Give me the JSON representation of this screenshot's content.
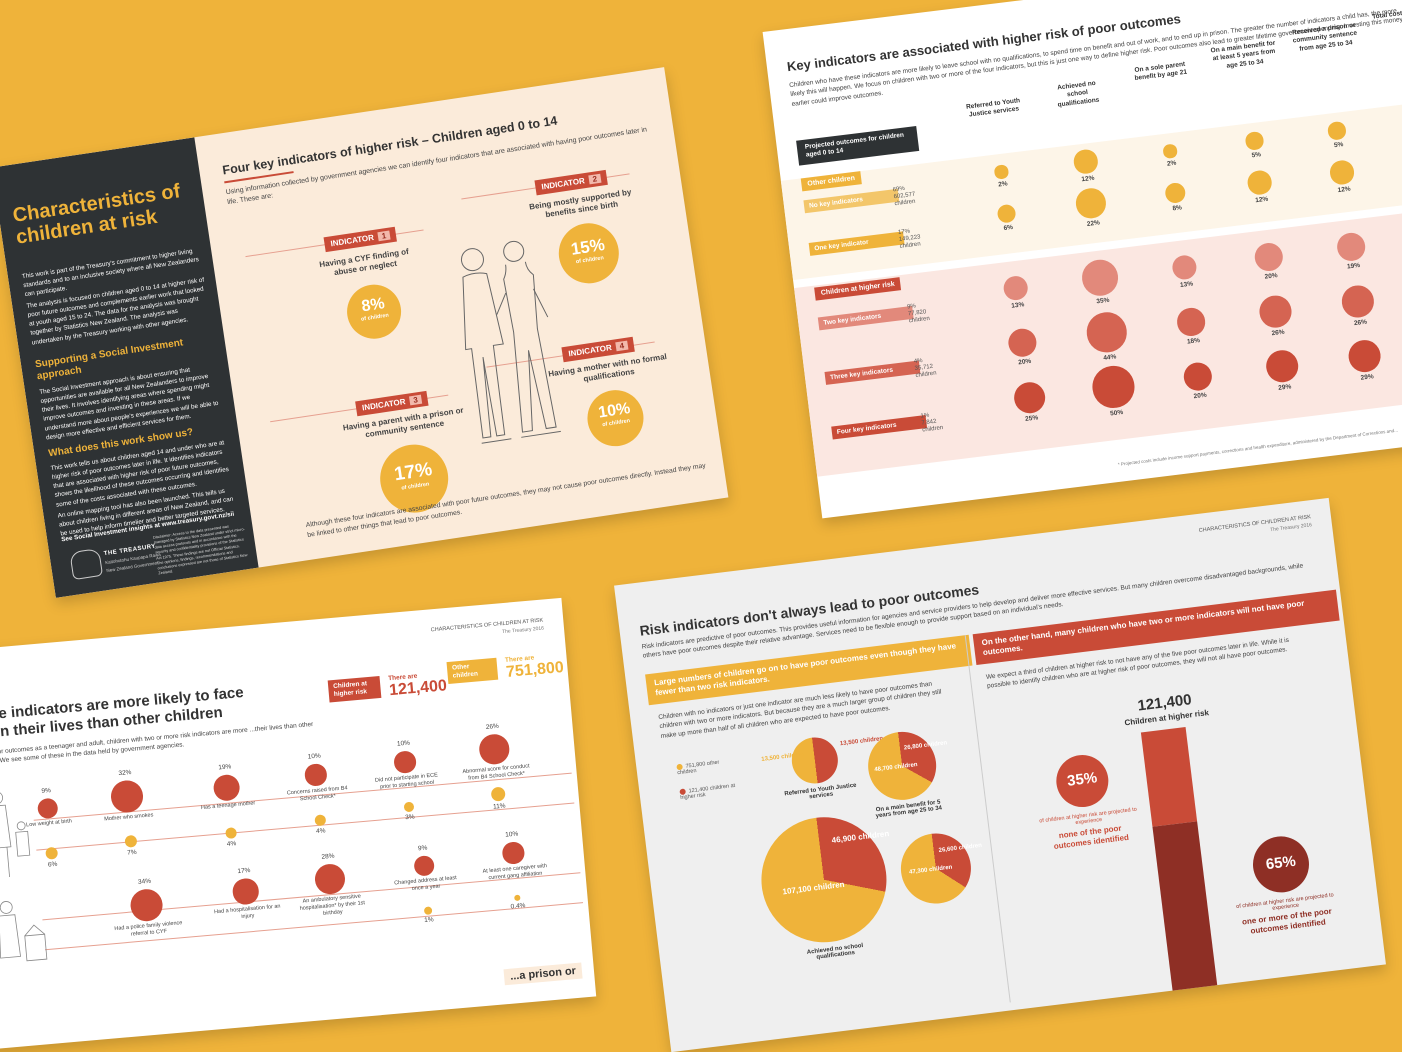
{
  "panel1": {
    "title": "Characteristics of children at risk",
    "intro1": "This work is part of the Treasury's commitment to higher living standards and to an inclusive society where all New Zealanders can participate.",
    "intro2": "The analysis is focused on children aged 0 to 14 at higher risk of poor future outcomes and complements earlier work that looked at youth aged 15 to 24. The data for the analysis was brought together by Statistics New Zealand. The analysis was undertaken by the Treasury working with other agencies.",
    "h_support": "Supporting a Social Investment approach",
    "support_text": "The Social Investment approach is about ensuring that opportunities are available for all New Zealanders to improve their lives. It involves identifying areas where spending might improve outcomes and investing in these areas. If we understand more about people's experiences we will be able to design more effective and efficient services for them.",
    "h_show": "What does this work show us?",
    "show_text1": "This work tells us about children aged 14 and under who are at higher risk of poor outcomes later in life. It identifies indicators that are associated with higher risk of poor future outcomes, shows the likelihood of these outcomes occurring and identifies some of the costs associated with these outcomes.",
    "show_text2": "An online mapping tool has also been launched. This tells us about children living in different areas of New Zealand, and can be used to help inform timelier and better targeted services.",
    "show_text3": "See Social Investment insights at www.treasury.govt.nz/sii",
    "disclaimer": "Disclaimer: Access to the data presented was managed by Statistics New Zealand under strict micro-data access protocols and in accordance with the security and confidentiality provisions of the Statistics Act 1975. These findings are not Official Statistics. The opinions, findings, recommendations and conclusions expressed are not those of Statistics New Zealand.",
    "logo_text": "THE TREASURY",
    "logo_sub": "Kaitohutohu Kaupapa Rawa",
    "nz_gov": "New Zealand Government",
    "heading": "Four key indicators of higher risk – Children aged 0 to 14",
    "subheading": "Using information collected by government agencies we can identify four indicators that are associated with having poor outcomes later in life. These are:",
    "indicators": [
      {
        "tag": "INDICATOR",
        "num": "1",
        "label": "Having a CYF finding of abuse or neglect",
        "pct": "8%",
        "unit": "of children"
      },
      {
        "tag": "INDICATOR",
        "num": "2",
        "label": "Being mostly supported by benefits since birth",
        "pct": "15%",
        "unit": "of children"
      },
      {
        "tag": "INDICATOR",
        "num": "3",
        "label": "Having a parent with a prison or community sentence",
        "pct": "17%",
        "unit": "of children"
      },
      {
        "tag": "INDICATOR",
        "num": "4",
        "label": "Having a mother with no formal qualifications",
        "pct": "10%",
        "unit": "of children"
      }
    ],
    "footnote": "Although these four indicators are associated with poor future outcomes, they may not cause poor outcomes directly. Instead they may be linked to other things that lead to poor outcomes."
  },
  "panel2": {
    "title": "Key indicators are associated with higher risk of poor outcomes",
    "intro": "Children who have these indicators are more likely to leave school with no qualifications, to spend time on benefit and out of work, and to end up in prison. The greater the number of indicators a child has, the more likely this will happen. We focus on children with two or more of the four indicators, but this is just one way to define higher risk. Poor outcomes also lead to greater lifetime government spending. Investing this money earlier could improve outcomes.",
    "projected_label": "Projected outcomes for children aged 0 to 14",
    "columns": [
      "Referred to Youth Justice services",
      "Achieved no school qualifications",
      "On a sole parent benefit by age 21",
      "On a main benefit for at least 5 years from age 25 to 34",
      "Received a prison or community sentence from age 25 to 34",
      "Total cost* to..."
    ],
    "other_children": "Other children",
    "at_risk": "Children at higher risk",
    "rows": [
      {
        "label": "No key indicators",
        "share": "69%",
        "count": "602,577",
        "unit": "children",
        "values": [
          "2%",
          "12%",
          "2%",
          "5%",
          "5%"
        ]
      },
      {
        "label": "One key indicator",
        "share": "17%",
        "count": "149,223",
        "unit": "children",
        "values": [
          "6%",
          "22%",
          "8%",
          "12%",
          "12%"
        ]
      },
      {
        "label": "Two key indicators",
        "share": "9%",
        "count": "77,820",
        "unit": "children",
        "values": [
          "13%",
          "35%",
          "13%",
          "20%",
          "19%"
        ]
      },
      {
        "label": "Three key indicators",
        "share": "4%",
        "count": "35,712",
        "unit": "children",
        "values": [
          "20%",
          "44%",
          "18%",
          "26%",
          "26%"
        ]
      },
      {
        "label": "Four key indicators",
        "share": "1%",
        "count": "7,842",
        "unit": "children",
        "values": [
          "25%",
          "50%",
          "20%",
          "29%",
          "29%"
        ]
      }
    ],
    "footnote": "* Projected costs include income support payments, corrections and health expenditure, administered by the Department of Corrections and..."
  },
  "panel3": {
    "header": "CHARACTERISTICS OF CHILDREN AT RISK",
    "header_sub": "The Treasury 2016",
    "title_line1": "...ese indicators are more likely to face",
    "title_line2": "...s in their lives than other children",
    "intro": "...ave poor outcomes as a teenager and adult, children with two or more risk indicators are more ...their lives than other children. We see some of these in the data held by government agencies.",
    "risk_label": "Children at higher risk",
    "risk_there": "There are",
    "risk_count": "121,400",
    "other_label": "Other children",
    "other_there": "There are",
    "other_count": "751,800",
    "items": [
      {
        "label": "Low weight at birth",
        "risk": "9%",
        "other": "6%"
      },
      {
        "label": "Mother who smokes",
        "risk": "32%",
        "other": "7%"
      },
      {
        "label": "Has a teenage mother",
        "risk": "19%",
        "other": "4%"
      },
      {
        "label": "Concerns raised from B4 School Check*",
        "risk": "10%",
        "other": "4%"
      },
      {
        "label": "Did not participate in ECE prior to starting school",
        "risk": "10%",
        "other": "3%"
      },
      {
        "label": "Abnormal score for conduct from B4 School Check*",
        "risk": "26%",
        "other": "11%"
      },
      {
        "label": "Had a police family violence referral to CYF",
        "risk": "34%",
        "other": ""
      },
      {
        "label": "Had a hospitalisation for an injury",
        "risk": "17%",
        "other": ""
      },
      {
        "label": "An ambulatory sensitive hospitalisation* by their 1st birthday",
        "risk": "28%",
        "other": ""
      },
      {
        "label": "Changed address at least once a year",
        "risk": "9%",
        "other": "1%"
      },
      {
        "label": "At least one caregiver with current gang affiliation",
        "risk": "10%",
        "other": "0.4%"
      }
    ],
    "bottom_fragment": "...a prison or"
  },
  "panel4": {
    "header": "CHARACTERISTICS OF CHILDREN AT RISK",
    "header_sub": "The Treasury 2016",
    "title": "Risk indicators don't always lead to poor outcomes",
    "intro": "Risk indicators are predictive of poor outcomes. This provides useful information for agencies and service providers to help develop and deliver more effective services. But many children overcome disadvantaged backgrounds, while others have poor outcomes despite their relative advantage. Services need to be flexible enough to provide support based on an individual's needs.",
    "left_banner": "Large numbers of children go on to have poor outcomes even though they have fewer than two risk indicators.",
    "left_text": "Children with no indicators or just one indicator are much less likely to have poor outcomes than children with two or more indicators. But because they are a much larger group of children they still make up more than half of all children who are expected to have poor outcomes.",
    "legend_other": "751,800 other children",
    "legend_risk": "121,400 children at higher risk",
    "pies": [
      {
        "title": "Referred to Youth Justice services",
        "other": "13,500",
        "risk": "13,500",
        "unit": "children"
      },
      {
        "title": "On a main benefit for 5 years from age 25 to 34",
        "other": "48,700",
        "risk": "26,800",
        "unit": "children"
      },
      {
        "title": "Achieved no school qualifications",
        "other": "107,100",
        "risk": "46,900",
        "unit": "children"
      },
      {
        "title": "",
        "other": "47,300",
        "risk": "26,600",
        "unit": "children"
      }
    ],
    "right_banner": "On the other hand, many children who have two or more indicators will not have poor outcomes.",
    "right_text": "We expect a third of children at higher risk to not have any of the five poor outcomes later in life. While it is possible to identify children who are at higher risk of poor outcomes, they will not all have poor outcomes.",
    "bar_count": "121,400",
    "bar_label": "Children at higher risk",
    "pct_none": "35%",
    "pct_none_text": "of children at higher risk are projected to experience",
    "pct_none_emph": "none of the poor outcomes identified",
    "pct_some": "65%",
    "pct_some_text": "of children at higher risk are projected to experience",
    "pct_some_emph": "one or more of the poor outcomes identified"
  }
}
